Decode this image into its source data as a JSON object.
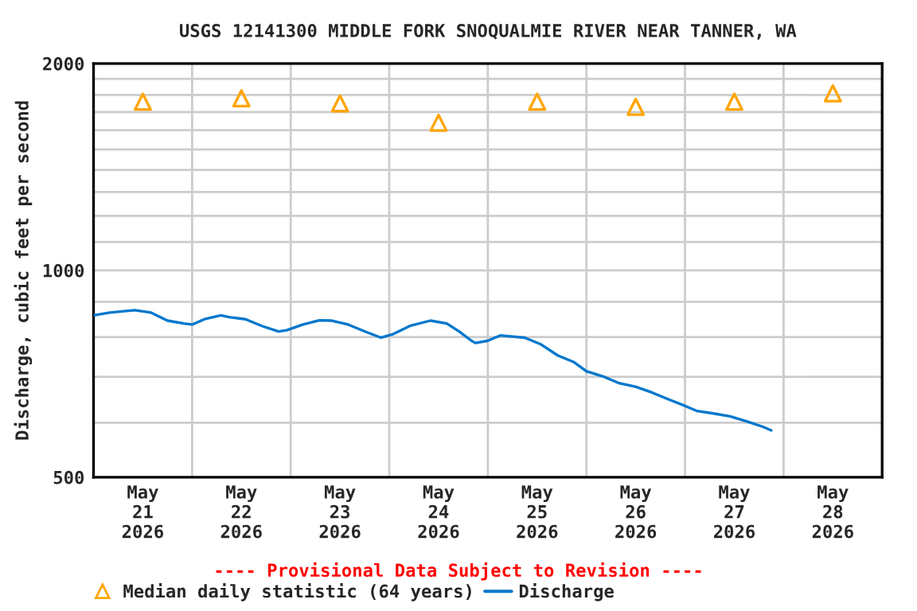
{
  "chart_data": {
    "type": "line",
    "title": "USGS 12141300 MIDDLE FORK SNOQUALMIE RIVER NEAR TANNER, WA",
    "ylabel": "Discharge, cubic feet per second",
    "annotations": [
      "---- Provisional Data Subject to Revision ----"
    ],
    "log": true,
    "grid": true,
    "legend": "bottom",
    "xlim": [
      "2026-05-21T00:00",
      "2026-05-29T00:00"
    ],
    "xticks": [
      {
        "value": "2026-05-21T12:00",
        "label": "May\n21\n2026"
      },
      {
        "value": "2026-05-22T12:00",
        "label": "May\n22\n2026"
      },
      {
        "value": "2026-05-23T12:00",
        "label": "May\n23\n2026"
      },
      {
        "value": "2026-05-24T12:00",
        "label": "May\n24\n2026"
      },
      {
        "value": "2026-05-25T12:00",
        "label": "May\n25\n2026"
      },
      {
        "value": "2026-05-26T12:00",
        "label": "May\n26\n2026"
      },
      {
        "value": "2026-05-27T12:00",
        "label": "May\n27\n2026"
      },
      {
        "value": "2026-05-28T12:00",
        "label": "May\n28\n2026"
      },
      {
        "value": "2026-05-22T00:00",
        "label": null
      },
      {
        "value": "2026-05-23T00:00",
        "label": null
      },
      {
        "value": "2026-05-24T00:00",
        "label": null
      },
      {
        "value": "2026-05-25T00:00",
        "label": null
      },
      {
        "value": "2026-05-26T00:00",
        "label": null
      },
      {
        "value": "2026-05-27T00:00",
        "label": null
      },
      {
        "value": "2026-05-28T00:00",
        "label": null
      }
    ],
    "ylim": [
      500,
      2000
    ],
    "yticks": [
      500,
      {
        "value": 600,
        "label": null
      },
      {
        "value": 700,
        "label": null
      },
      {
        "value": 800,
        "label": null
      },
      {
        "value": 900,
        "label": null
      },
      1000,
      {
        "value": 1100,
        "label": null
      },
      {
        "value": 1200,
        "label": null
      },
      {
        "value": 1300,
        "label": null
      },
      {
        "value": 1400,
        "label": null
      },
      {
        "value": 1500,
        "label": null
      },
      {
        "value": 1600,
        "label": null
      },
      {
        "value": 1700,
        "label": null
      },
      {
        "value": 1800,
        "label": null
      },
      {
        "value": 1900,
        "label": null
      },
      2000
    ],
    "series": [
      {
        "name": "Median daily statistic (64 years)",
        "type": "scatter",
        "marker": "triangle",
        "color": "#ffa500",
        "x": [
          "2026-05-21T12:00",
          "2026-05-22T12:00",
          "2026-05-23T12:00",
          "2026-05-24T12:00",
          "2026-05-25T12:00",
          "2026-05-26T12:00",
          "2026-05-27T12:00",
          "2026-05-28T12:00"
        ],
        "values": [
          1760,
          1780,
          1750,
          1640,
          1760,
          1730,
          1760,
          1810
        ]
      },
      {
        "name": "Discharge",
        "marker": "none",
        "color": "#0077cc",
        "x": [
          "2026-05-21T00:00",
          "2026-05-21T04:00",
          "2026-05-21T10:00",
          "2026-05-21T14:00",
          "2026-05-21T18:00",
          "2026-05-21T22:00",
          "2026-05-22T00:00",
          "2026-05-22T03:00",
          "2026-05-22T07:00",
          "2026-05-22T09:00",
          "2026-05-22T13:00",
          "2026-05-22T17:00",
          "2026-05-22T21:00",
          "2026-05-22T23:00",
          "2026-05-23T03:00",
          "2026-05-23T07:00",
          "2026-05-23T10:00",
          "2026-05-23T14:00",
          "2026-05-23T18:00",
          "2026-05-23T22:00",
          "2026-05-24T01:00",
          "2026-05-24T05:00",
          "2026-05-24T10:00",
          "2026-05-24T14:00",
          "2026-05-24T17:00",
          "2026-05-24T20:00",
          "2026-05-24T21:00",
          "2026-05-25T00:00",
          "2026-05-25T03:00",
          "2026-05-25T09:00",
          "2026-05-25T13:00",
          "2026-05-25T17:00",
          "2026-05-25T21:00",
          "2026-05-26T00:00",
          "2026-05-26T04:00",
          "2026-05-26T08:00",
          "2026-05-26T12:00",
          "2026-05-26T16:00",
          "2026-05-26T20:00",
          "2026-05-27T00:00",
          "2026-05-27T03:00",
          "2026-05-27T07:00",
          "2026-05-27T11:00",
          "2026-05-27T15:00",
          "2026-05-27T19:00",
          "2026-05-27T21:00"
        ],
        "values": [
          860,
          868,
          875,
          868,
          845,
          837,
          834,
          849,
          860,
          855,
          849,
          830,
          815,
          818,
          834,
          846,
          845,
          834,
          815,
          798,
          808,
          830,
          845,
          837,
          815,
          790,
          784,
          790,
          804,
          798,
          780,
          752,
          735,
          713,
          701,
          685,
          677,
          664,
          649,
          635,
          624,
          619,
          613,
          603,
          592,
          585
        ]
      }
    ]
  }
}
